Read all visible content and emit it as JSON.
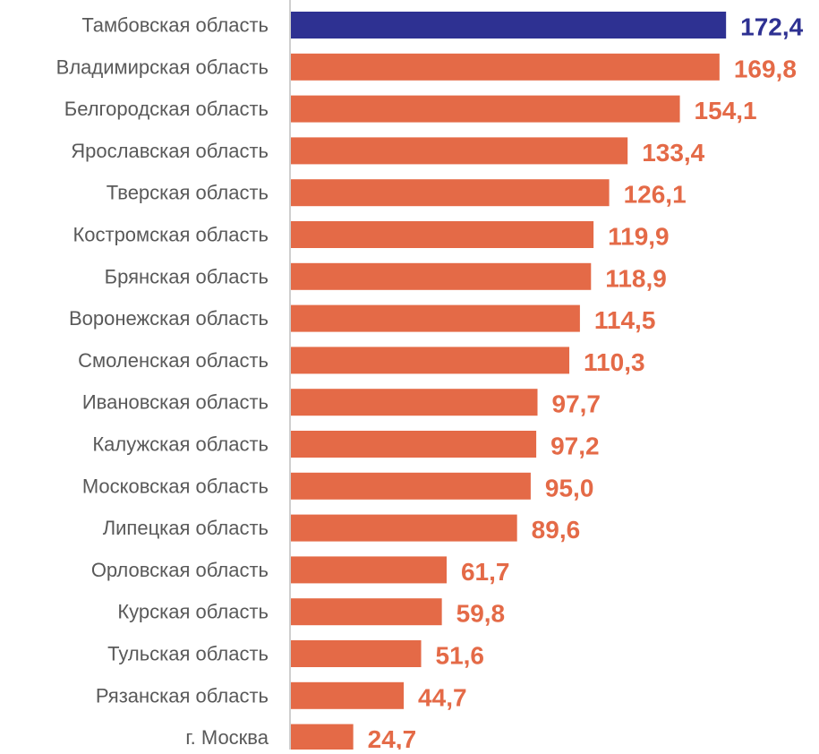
{
  "chart_data": {
    "type": "bar",
    "orientation": "horizontal",
    "categories": [
      "Тамбовская область",
      "Владимирская область",
      "Белгородская область",
      "Ярославская область",
      "Тверская область",
      "Костромская область",
      "Брянская область",
      "Воронежская область",
      "Смоленская область",
      "Ивановская область",
      "Калужская область",
      "Московская область",
      "Липецкая область",
      "Орловская область",
      "Курская область",
      "Тульская область",
      "Рязанская область",
      "г. Москва"
    ],
    "values": [
      172.4,
      169.8,
      154.1,
      133.4,
      126.1,
      119.9,
      118.9,
      114.5,
      110.3,
      97.7,
      97.2,
      95.0,
      89.6,
      61.7,
      59.8,
      51.6,
      44.7,
      24.7
    ],
    "value_labels": [
      "172,4",
      "169,8",
      "154,1",
      "133,4",
      "126,1",
      "119,9",
      "118,9",
      "114,5",
      "110,3",
      "97,7",
      "97,2",
      "95,0",
      "89,6",
      "61,7",
      "59,8",
      "51,6",
      "44,7",
      "24,7"
    ],
    "highlight_index": 0,
    "colors": {
      "bar": "#E46A47",
      "highlight": "#2E3192",
      "axis": "#BFBFBF",
      "category_text": "#595959"
    },
    "grid": false,
    "legend": "none",
    "title": "",
    "xlabel": "",
    "ylabel": ""
  }
}
